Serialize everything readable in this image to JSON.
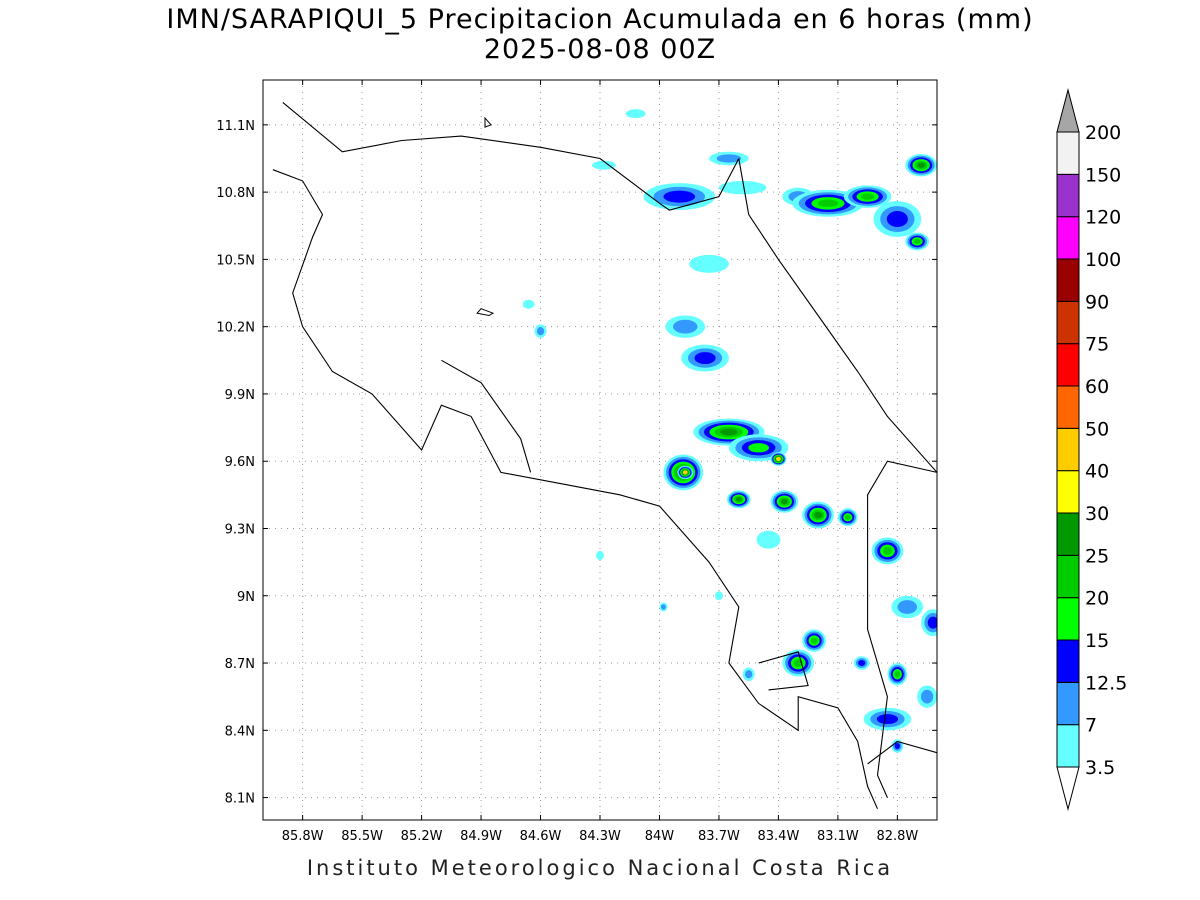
{
  "title": {
    "line1": "IMN/SARAPIQUI_5 Precipitacion Acumulada en 6 horas (mm)",
    "line2": "2025-08-08 00Z"
  },
  "footer": "Instituto Meteorologico Nacional Costa Rica",
  "map": {
    "lon_range": [
      -86.0,
      -82.6
    ],
    "lat_range": [
      8.0,
      11.3
    ],
    "lon_ticks": [
      {
        "value": -85.8,
        "label": "85.8W"
      },
      {
        "value": -85.5,
        "label": "85.5W"
      },
      {
        "value": -85.2,
        "label": "85.2W"
      },
      {
        "value": -84.9,
        "label": "84.9W"
      },
      {
        "value": -84.6,
        "label": "84.6W"
      },
      {
        "value": -84.3,
        "label": "84.3W"
      },
      {
        "value": -84.0,
        "label": "84W"
      },
      {
        "value": -83.7,
        "label": "83.7W"
      },
      {
        "value": -83.4,
        "label": "83.4W"
      },
      {
        "value": -83.1,
        "label": "83.1W"
      },
      {
        "value": -82.8,
        "label": "82.8W"
      }
    ],
    "lat_ticks": [
      {
        "value": 11.1,
        "label": "11.1N"
      },
      {
        "value": 10.8,
        "label": "10.8N"
      },
      {
        "value": 10.5,
        "label": "10.5N"
      },
      {
        "value": 10.2,
        "label": "10.2N"
      },
      {
        "value": 9.9,
        "label": "9.9N"
      },
      {
        "value": 9.6,
        "label": "9.6N"
      },
      {
        "value": 9.3,
        "label": "9.3N"
      },
      {
        "value": 9.0,
        "label": "9N"
      },
      {
        "value": 8.7,
        "label": "8.7N"
      },
      {
        "value": 8.4,
        "label": "8.4N"
      },
      {
        "value": 8.1,
        "label": "8.1N"
      }
    ],
    "grid": "dotted",
    "borders": [
      [
        [
          -85.9,
          11.2
        ],
        [
          -85.6,
          10.98
        ],
        [
          -85.3,
          11.03
        ],
        [
          -85.0,
          11.05
        ],
        [
          -84.6,
          11.0
        ],
        [
          -84.3,
          10.95
        ],
        [
          -84.0,
          10.75
        ],
        [
          -83.95,
          10.72
        ],
        [
          -83.7,
          10.78
        ],
        [
          -83.6,
          10.95
        ]
      ],
      [
        [
          -85.95,
          10.9
        ],
        [
          -85.8,
          10.85
        ],
        [
          -85.7,
          10.7
        ],
        [
          -85.75,
          10.6
        ],
        [
          -85.85,
          10.35
        ],
        [
          -85.8,
          10.2
        ],
        [
          -85.65,
          10.0
        ],
        [
          -85.45,
          9.9
        ],
        [
          -85.2,
          9.65
        ],
        [
          -85.1,
          9.85
        ],
        [
          -84.95,
          9.8
        ],
        [
          -84.8,
          9.55
        ],
        [
          -84.5,
          9.5
        ],
        [
          -84.2,
          9.45
        ],
        [
          -84.0,
          9.4
        ],
        [
          -83.75,
          9.15
        ],
        [
          -83.6,
          8.95
        ],
        [
          -83.65,
          8.7
        ],
        [
          -83.5,
          8.52
        ],
        [
          -83.3,
          8.4
        ],
        [
          -83.3,
          8.55
        ],
        [
          -83.1,
          8.5
        ],
        [
          -83.0,
          8.35
        ],
        [
          -82.95,
          8.15
        ],
        [
          -82.9,
          8.05
        ]
      ],
      [
        [
          -85.1,
          10.05
        ],
        [
          -84.9,
          9.95
        ],
        [
          -84.7,
          9.7
        ],
        [
          -84.65,
          9.55
        ]
      ],
      [
        [
          -83.6,
          10.95
        ],
        [
          -83.55,
          10.7
        ],
        [
          -83.4,
          10.5
        ],
        [
          -83.2,
          10.25
        ],
        [
          -83.0,
          10.0
        ],
        [
          -82.85,
          9.8
        ],
        [
          -82.6,
          9.55
        ]
      ],
      [
        [
          -82.6,
          9.55
        ],
        [
          -82.85,
          9.6
        ],
        [
          -82.95,
          9.45
        ],
        [
          -82.95,
          8.85
        ],
        [
          -82.85,
          8.55
        ],
        [
          -82.9,
          8.2
        ],
        [
          -82.85,
          8.1
        ]
      ],
      [
        [
          -83.5,
          8.7
        ],
        [
          -83.3,
          8.75
        ],
        [
          -83.25,
          8.6
        ],
        [
          -83.45,
          8.58
        ]
      ],
      [
        [
          -82.95,
          8.25
        ],
        [
          -82.8,
          8.35
        ],
        [
          -82.6,
          8.3
        ]
      ]
    ],
    "lakes": [
      [
        [
          -84.9,
          10.28
        ],
        [
          -84.84,
          10.26
        ],
        [
          -84.86,
          10.25
        ],
        [
          -84.92,
          10.26
        ]
      ],
      [
        [
          -84.88,
          11.13
        ],
        [
          -84.85,
          11.1
        ],
        [
          -84.88,
          11.09
        ]
      ]
    ],
    "precip_cells": [
      {
        "lon": -83.65,
        "lat": 10.95,
        "rx": 0.1,
        "ry": 0.03,
        "value": 7
      },
      {
        "lon": -83.9,
        "lat": 10.78,
        "rx": 0.18,
        "ry": 0.06,
        "value": 12.5
      },
      {
        "lon": -83.58,
        "lat": 10.82,
        "rx": 0.12,
        "ry": 0.03,
        "value": 3.5
      },
      {
        "lon": -83.3,
        "lat": 10.78,
        "rx": 0.08,
        "ry": 0.04,
        "value": 7
      },
      {
        "lon": -83.15,
        "lat": 10.75,
        "rx": 0.18,
        "ry": 0.06,
        "value": 20
      },
      {
        "lon": -82.95,
        "lat": 10.78,
        "rx": 0.12,
        "ry": 0.05,
        "value": 20
      },
      {
        "lon": -82.8,
        "lat": 10.68,
        "rx": 0.12,
        "ry": 0.08,
        "value": 12.5
      },
      {
        "lon": -82.7,
        "lat": 10.58,
        "rx": 0.06,
        "ry": 0.04,
        "value": 20
      },
      {
        "lon": -82.68,
        "lat": 10.92,
        "rx": 0.08,
        "ry": 0.05,
        "value": 25
      },
      {
        "lon": -84.28,
        "lat": 10.92,
        "rx": 0.06,
        "ry": 0.02,
        "value": 3.5
      },
      {
        "lon": -84.12,
        "lat": 11.15,
        "rx": 0.05,
        "ry": 0.02,
        "value": 3.5
      },
      {
        "lon": -83.75,
        "lat": 10.48,
        "rx": 0.1,
        "ry": 0.04,
        "value": 3.5
      },
      {
        "lon": -83.87,
        "lat": 10.2,
        "rx": 0.1,
        "ry": 0.05,
        "value": 7
      },
      {
        "lon": -83.77,
        "lat": 10.06,
        "rx": 0.12,
        "ry": 0.06,
        "value": 12.5
      },
      {
        "lon": -84.6,
        "lat": 10.18,
        "rx": 0.03,
        "ry": 0.03,
        "value": 7
      },
      {
        "lon": -84.66,
        "lat": 10.3,
        "rx": 0.03,
        "ry": 0.02,
        "value": 3.5
      },
      {
        "lon": -83.65,
        "lat": 9.73,
        "rx": 0.18,
        "ry": 0.06,
        "value": 25
      },
      {
        "lon": -83.5,
        "lat": 9.66,
        "rx": 0.15,
        "ry": 0.06,
        "value": 15
      },
      {
        "lon": -83.4,
        "lat": 9.61,
        "rx": 0.04,
        "ry": 0.03,
        "value": 40
      },
      {
        "lon": -83.88,
        "lat": 9.55,
        "rx": 0.1,
        "ry": 0.08,
        "value": 30
      },
      {
        "lon": -83.87,
        "lat": 9.55,
        "rx": 0.04,
        "ry": 0.03,
        "value": 40
      },
      {
        "lon": -83.6,
        "lat": 9.43,
        "rx": 0.06,
        "ry": 0.04,
        "value": 25
      },
      {
        "lon": -83.37,
        "lat": 9.42,
        "rx": 0.07,
        "ry": 0.05,
        "value": 25
      },
      {
        "lon": -83.2,
        "lat": 9.36,
        "rx": 0.08,
        "ry": 0.06,
        "value": 25
      },
      {
        "lon": -83.05,
        "lat": 9.35,
        "rx": 0.05,
        "ry": 0.04,
        "value": 20
      },
      {
        "lon": -83.45,
        "lat": 9.25,
        "rx": 0.06,
        "ry": 0.04,
        "value": 3.5
      },
      {
        "lon": -82.85,
        "lat": 9.2,
        "rx": 0.08,
        "ry": 0.06,
        "value": 20
      },
      {
        "lon": -82.75,
        "lat": 8.95,
        "rx": 0.08,
        "ry": 0.05,
        "value": 7
      },
      {
        "lon": -82.62,
        "lat": 8.88,
        "rx": 0.06,
        "ry": 0.06,
        "value": 12.5
      },
      {
        "lon": -83.22,
        "lat": 8.8,
        "rx": 0.06,
        "ry": 0.05,
        "value": 20
      },
      {
        "lon": -83.3,
        "lat": 8.7,
        "rx": 0.08,
        "ry": 0.06,
        "value": 20
      },
      {
        "lon": -83.55,
        "lat": 8.65,
        "rx": 0.03,
        "ry": 0.03,
        "value": 7
      },
      {
        "lon": -82.98,
        "lat": 8.7,
        "rx": 0.04,
        "ry": 0.03,
        "value": 12.5
      },
      {
        "lon": -82.8,
        "lat": 8.65,
        "rx": 0.05,
        "ry": 0.05,
        "value": 20
      },
      {
        "lon": -82.65,
        "lat": 8.55,
        "rx": 0.05,
        "ry": 0.05,
        "value": 7
      },
      {
        "lon": -82.85,
        "lat": 8.45,
        "rx": 0.12,
        "ry": 0.05,
        "value": 12.5
      },
      {
        "lon": -82.8,
        "lat": 8.33,
        "rx": 0.03,
        "ry": 0.03,
        "value": 12.5
      },
      {
        "lon": -84.3,
        "lat": 9.18,
        "rx": 0.02,
        "ry": 0.02,
        "value": 3.5
      },
      {
        "lon": -83.98,
        "lat": 8.95,
        "rx": 0.02,
        "ry": 0.02,
        "value": 7
      },
      {
        "lon": -83.7,
        "lat": 9.0,
        "rx": 0.02,
        "ry": 0.02,
        "value": 3.5
      }
    ]
  },
  "legend": {
    "levels": [
      "3.5",
      "7",
      "12.5",
      "15",
      "20",
      "25",
      "30",
      "40",
      "50",
      "60",
      "75",
      "90",
      "100",
      "120",
      "150",
      "200"
    ],
    "colors": [
      "#ffffff",
      "#66ffff",
      "#3399ff",
      "#0000ff",
      "#00ff00",
      "#00cc00",
      "#009900",
      "#ffff00",
      "#ffcc00",
      "#ff6600",
      "#ff0000",
      "#cc3300",
      "#990000",
      "#ff00ff",
      "#9933cc",
      "#f2f2f2",
      "#a6a6a6"
    ]
  }
}
